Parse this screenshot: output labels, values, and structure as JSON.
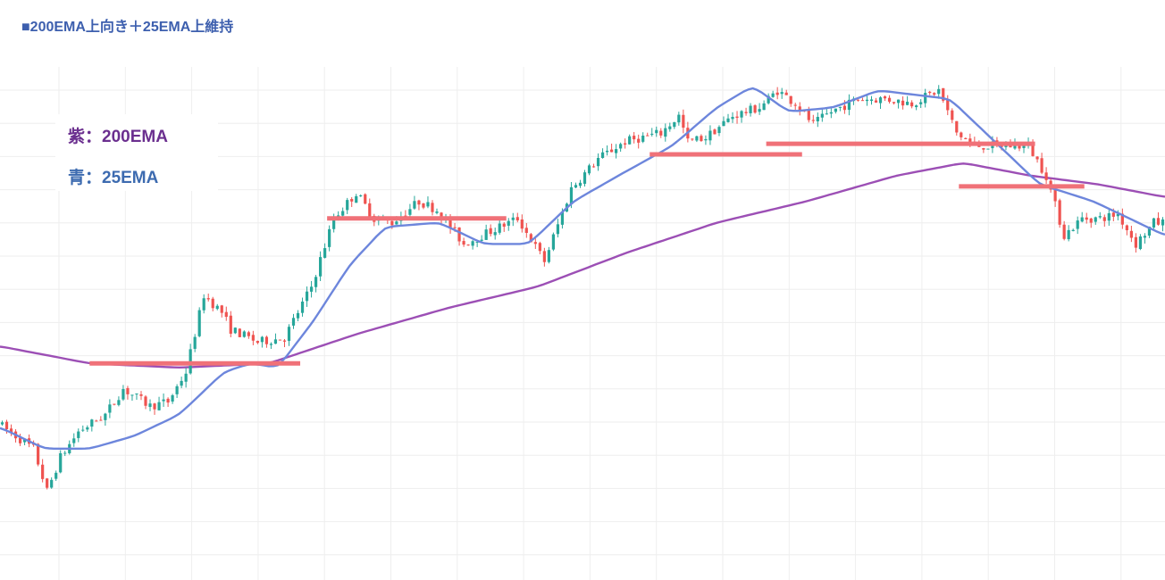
{
  "title": "■200EMA上向き＋25EMA上維持",
  "colors": {
    "background": "#ffffff",
    "grid": "#eeeeee",
    "up_candle": "#26a69a",
    "down_candle": "#ef5350",
    "ema200": "#9c4fb5",
    "ema25": "#6d86dc",
    "support": "#f07178",
    "title": "#3d5fae"
  },
  "legend": [
    {
      "text": "紫：200EMA",
      "color": "#6b2f8f"
    },
    {
      "text": "青：25EMA",
      "color": "#3d6bb0"
    }
  ],
  "chart_data": {
    "type": "candlestick",
    "title": "■200EMA上向き＋25EMA上維持",
    "xlabel": "",
    "ylabel": "",
    "ylim": [
      0,
      100
    ],
    "xlim": [
      0,
      260
    ],
    "grid": true,
    "tick_labels_visible": false,
    "price_path": [
      [
        0,
        28
      ],
      [
        4,
        25
      ],
      [
        8,
        22
      ],
      [
        11,
        12
      ],
      [
        14,
        20
      ],
      [
        18,
        26
      ],
      [
        24,
        30
      ],
      [
        28,
        36
      ],
      [
        34,
        32
      ],
      [
        38,
        33
      ],
      [
        42,
        40
      ],
      [
        46,
        58
      ],
      [
        50,
        54
      ],
      [
        52,
        50
      ],
      [
        58,
        47
      ],
      [
        64,
        48
      ],
      [
        70,
        60
      ],
      [
        75,
        76
      ],
      [
        80,
        82
      ],
      [
        84,
        76
      ],
      [
        88,
        75
      ],
      [
        94,
        80
      ],
      [
        98,
        78
      ],
      [
        104,
        70
      ],
      [
        110,
        73
      ],
      [
        116,
        76
      ],
      [
        122,
        66
      ],
      [
        128,
        83
      ],
      [
        134,
        90
      ],
      [
        140,
        94
      ],
      [
        148,
        96
      ],
      [
        152,
        100
      ],
      [
        154,
        94
      ],
      [
        158,
        95
      ],
      [
        164,
        100
      ],
      [
        170,
        102
      ],
      [
        174,
        106
      ],
      [
        178,
        103
      ],
      [
        182,
        98
      ],
      [
        186,
        101
      ],
      [
        192,
        104
      ],
      [
        198,
        104
      ],
      [
        204,
        103
      ],
      [
        210,
        106
      ],
      [
        214,
        96
      ],
      [
        218,
        93
      ],
      [
        224,
        93
      ],
      [
        230,
        93
      ],
      [
        234,
        86
      ],
      [
        238,
        72
      ],
      [
        242,
        76
      ],
      [
        246,
        76
      ],
      [
        250,
        77
      ],
      [
        254,
        70
      ],
      [
        258,
        75
      ]
    ],
    "ema200": [
      [
        0,
        46
      ],
      [
        20,
        42
      ],
      [
        40,
        41
      ],
      [
        60,
        42
      ],
      [
        80,
        49
      ],
      [
        100,
        55
      ],
      [
        120,
        60
      ],
      [
        140,
        68
      ],
      [
        160,
        75
      ],
      [
        180,
        80
      ],
      [
        200,
        86
      ],
      [
        215,
        89
      ],
      [
        230,
        86
      ],
      [
        245,
        84
      ],
      [
        260,
        81
      ]
    ],
    "ema25": [
      [
        0,
        27
      ],
      [
        10,
        22
      ],
      [
        20,
        22
      ],
      [
        30,
        25
      ],
      [
        40,
        30
      ],
      [
        50,
        40
      ],
      [
        56,
        42
      ],
      [
        62,
        41
      ],
      [
        70,
        52
      ],
      [
        78,
        65
      ],
      [
        86,
        74
      ],
      [
        98,
        75
      ],
      [
        108,
        70
      ],
      [
        118,
        70
      ],
      [
        128,
        80
      ],
      [
        138,
        86
      ],
      [
        150,
        93
      ],
      [
        160,
        102
      ],
      [
        168,
        107
      ],
      [
        176,
        101
      ],
      [
        186,
        102
      ],
      [
        196,
        106
      ],
      [
        212,
        104
      ],
      [
        222,
        94
      ],
      [
        232,
        84
      ],
      [
        244,
        80
      ],
      [
        250,
        77
      ],
      [
        260,
        72
      ]
    ],
    "support_lines": [
      {
        "y": 42,
        "x_start": 20,
        "x_end": 67
      },
      {
        "y": 76,
        "x_start": 73,
        "x_end": 113
      },
      {
        "y": 91,
        "x_start": 145,
        "x_end": 179
      },
      {
        "y": 93.5,
        "x_start": 171,
        "x_end": 231
      },
      {
        "y": 83.5,
        "x_start": 214,
        "x_end": 242
      }
    ]
  }
}
